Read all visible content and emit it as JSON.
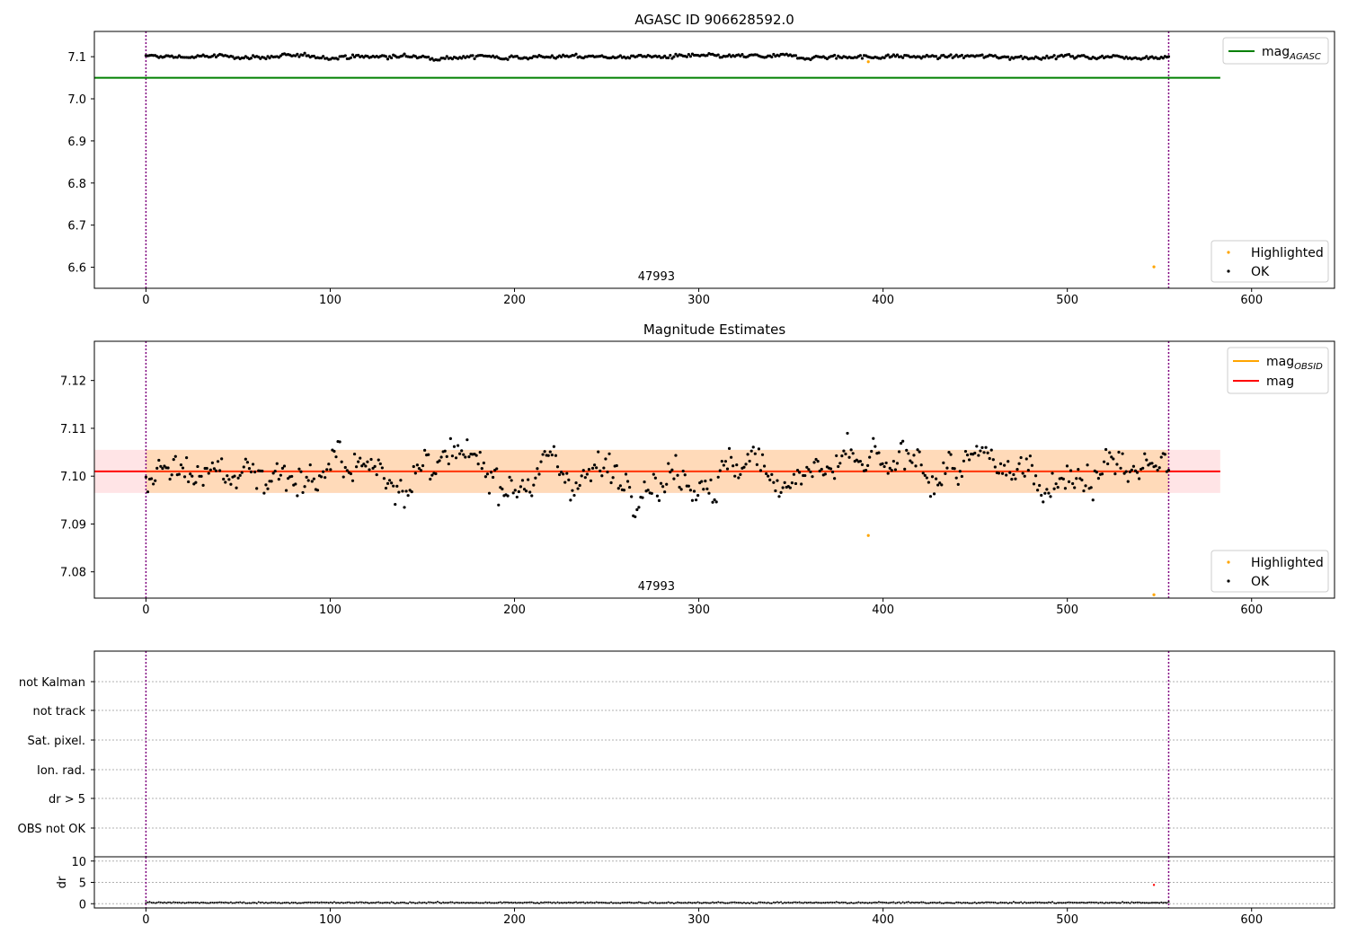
{
  "figure": {
    "top_title": "AGASC ID 906628592.0",
    "middle_title": "Magnitude Estimates",
    "obsid_label": "47993"
  },
  "colors": {
    "ok": "#000000",
    "highlighted": "#ffa500",
    "agasc_line": "#008000",
    "mag_line": "#ff0000",
    "obsid_line": "#ffa500",
    "obsid_band": "#ffdab9",
    "mag_band": "#ffe4e6",
    "obs_boundary": "#800080",
    "dr_highlight": "#ff0000"
  },
  "chart_data": [
    {
      "type": "scatter",
      "title": "AGASC ID 906628592.0",
      "xlim": [
        -28,
        645
      ],
      "ylim": [
        6.55,
        7.16
      ],
      "xticks": [
        "0",
        "100",
        "200",
        "300",
        "400",
        "500",
        "600"
      ],
      "yticks": [
        "6.6",
        "6.7",
        "6.8",
        "6.9",
        "7.0",
        "7.1"
      ],
      "legend_lines": [
        {
          "label": "mag",
          "sub": "AGASC"
        }
      ],
      "legend_points": [
        {
          "label": "Highlighted"
        },
        {
          "label": "OK"
        }
      ],
      "reference_lines": {
        "mag_agasc": 7.05,
        "x_range": [
          -28,
          583
        ]
      },
      "obs_boundaries": [
        0,
        555
      ],
      "obsid_annotation": {
        "text": "47993",
        "x": 277
      },
      "series": [
        {
          "name": "OK",
          "x_range": [
            0,
            555
          ],
          "count": 555,
          "mean": 7.1,
          "spread": 0.006
        },
        {
          "name": "Highlighted",
          "points": [
            [
              392,
              7.088
            ],
            [
              547,
              6.601
            ]
          ]
        }
      ]
    },
    {
      "type": "scatter",
      "title": "Magnitude Estimates",
      "xlim": [
        -28,
        645
      ],
      "ylim": [
        7.0745,
        7.1282
      ],
      "xticks": [
        "0",
        "100",
        "200",
        "300",
        "400",
        "500",
        "600"
      ],
      "yticks": [
        "7.08",
        "7.09",
        "7.10",
        "7.11",
        "7.12"
      ],
      "legend_lines": [
        {
          "label": "mag",
          "sub": "OBSID"
        },
        {
          "label": "mag",
          "sub": ""
        }
      ],
      "legend_points": [
        {
          "label": "Highlighted"
        },
        {
          "label": "OK"
        }
      ],
      "mag": 7.101,
      "mag_band": [
        7.0965,
        7.1055
      ],
      "obsid_band_x": [
        0,
        555
      ],
      "mag_band_x": [
        -28,
        583
      ],
      "obs_boundaries": [
        0,
        555
      ],
      "obsid_annotation": {
        "text": "47993",
        "x": 277
      },
      "series": [
        {
          "name": "OK",
          "x_range": [
            0,
            555
          ],
          "count": 555,
          "mean": 7.101,
          "spread": 0.0045
        },
        {
          "name": "Highlighted",
          "points": [
            [
              392,
              7.0876
            ],
            [
              547,
              7.0752
            ]
          ]
        }
      ]
    },
    {
      "type": "scatter",
      "title": "",
      "xlim": [
        -28,
        645
      ],
      "categories": [
        "not Kalman",
        "not track",
        "Sat. pixel.",
        "Ion. rad.",
        "dr > 5",
        "OBS not OK"
      ],
      "obs_boundaries": [
        0,
        555
      ]
    },
    {
      "type": "scatter",
      "title": "",
      "ylabel": "dr",
      "xlim": [
        -28,
        645
      ],
      "ylim": [
        -1,
        11
      ],
      "xticks": [
        "0",
        "100",
        "200",
        "300",
        "400",
        "500",
        "600"
      ],
      "yticks": [
        "0",
        "5",
        "10"
      ],
      "obs_boundaries": [
        0,
        555
      ],
      "series": [
        {
          "name": "OK",
          "x_range": [
            0,
            555
          ],
          "count": 555,
          "mean": 0.25,
          "spread": 0.15
        },
        {
          "name": "Highlighted",
          "points": [
            [
              547,
              4.4
            ]
          ]
        }
      ]
    }
  ]
}
